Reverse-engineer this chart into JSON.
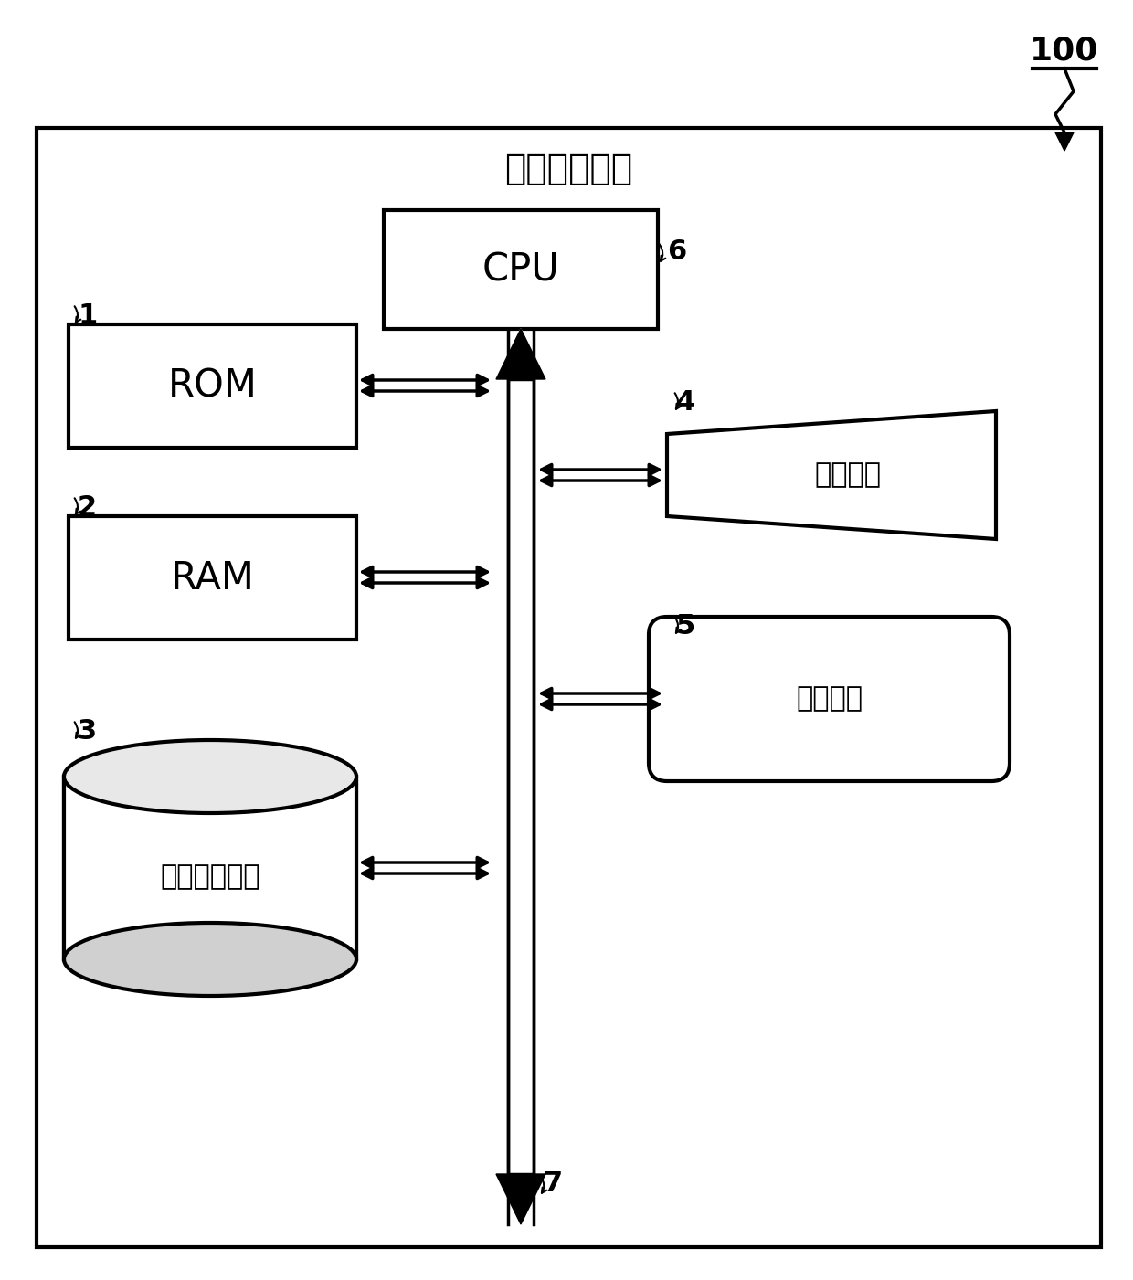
{
  "title": "声音检索装置",
  "label_100": "100",
  "label_cpu": "CPU",
  "label_rom": "ROM",
  "label_ram": "RAM",
  "label_ext": "外部存储装置",
  "label_input": "输入装置",
  "label_output": "输出装置",
  "num_1": "1",
  "num_2": "2",
  "num_3": "3",
  "num_4": "4",
  "num_5": "5",
  "num_6": "6",
  "num_7": "7",
  "bg_color": "#ffffff",
  "box_color": "#000000",
  "lw": 2.5
}
